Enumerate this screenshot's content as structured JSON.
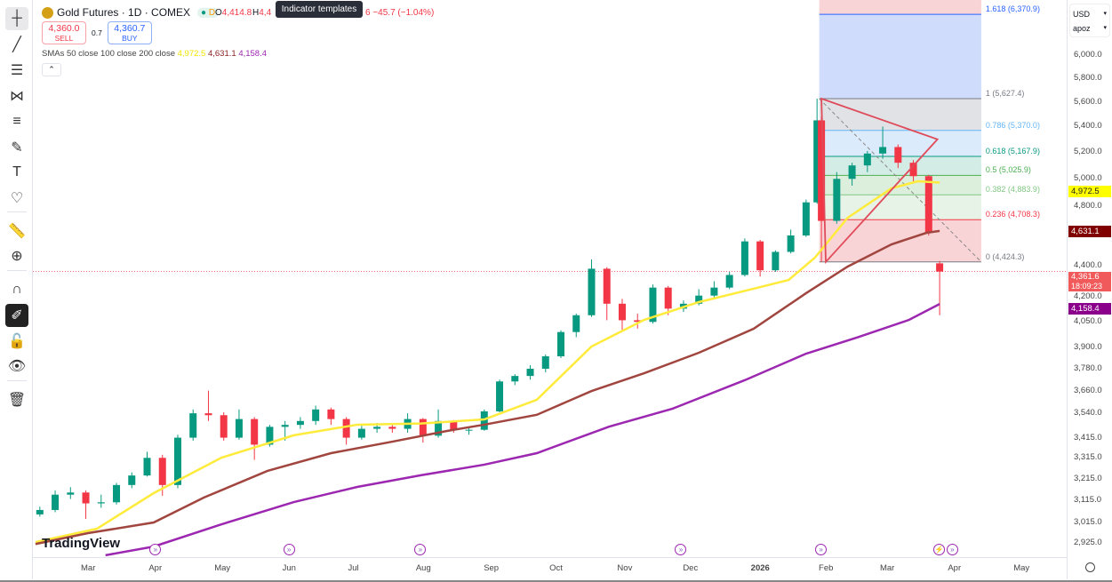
{
  "header": {
    "symbol_title": "Gold Futures · 1D · COMEX",
    "status_dot": "●",
    "delay_badge": "D",
    "open_prefix": "O",
    "open_value": "4,414.8",
    "high_prefix": "H",
    "high_partial": "4,4",
    "hidden_tail": "6",
    "change": "−45.7 (−1.04%)",
    "tooltip": "Indicator templates",
    "sell_price": "4,360.0",
    "sell_label": "SELL",
    "spread": "0.7",
    "buy_price": "4,360.7",
    "buy_label": "BUY",
    "sma_label": "SMAs 50 close 100 close 200 close",
    "sma50_value": "4,972.5",
    "sma100_value": "4,631.1",
    "sma200_value": "4,158.4",
    "collapse_icon": "chevron-up-icon"
  },
  "toolbar": {
    "tools": [
      "crosshair-icon",
      "trend-line-icon",
      "horizontal-lines-icon",
      "pattern-icon",
      "fib-icon",
      "brush-icon",
      "text-icon",
      "heart-icon",
      "ruler-icon",
      "zoom-in-icon",
      "magnet-icon",
      "lock-drawings-icon",
      "unlock-icon",
      "eye-icon",
      "trash-icon"
    ]
  },
  "price_axis": {
    "currency": "USD",
    "scale_mode": "apoz",
    "ticks": [
      "6,000.0",
      "5,800.0",
      "5,600.0",
      "5,400.0",
      "5,200.0",
      "5,000.0",
      "4,800.0",
      "4,400.0",
      "4,200.0",
      "4,050.0",
      "3,900.0",
      "3,780.0",
      "3,660.0",
      "3,540.0",
      "3,415.0",
      "3,315.0",
      "3,215.0",
      "3,115.0",
      "3,015.0",
      "2,925.0"
    ],
    "last_price": "4,361.6",
    "countdown": "18:09:23",
    "sma50_tag": "4,972.5",
    "sma100_tag": "4,631.1",
    "sma200_tag": "4,158.4"
  },
  "time_axis": {
    "ticks": [
      "Mar",
      "Apr",
      "May",
      "Jun",
      "Jul",
      "Aug",
      "Sep",
      "Oct",
      "Nov",
      "Dec",
      "2026",
      "Feb",
      "Mar",
      "Apr",
      "May"
    ],
    "settings_icon": "gear-icon"
  },
  "branding": "TradingView",
  "colors": {
    "up": "#089981",
    "down": "#f23645",
    "sma50": "#ffeb3b",
    "sma100": "#a1453f",
    "sma200": "#9c27b0",
    "last_price": "#f23645"
  },
  "chart_data": {
    "type": "candlestick",
    "scale": "log",
    "ylim": [
      2900,
      6600
    ],
    "tick_dates": [
      "2025-03-01",
      "2025-04-01",
      "2025-05-01",
      "2025-06-01",
      "2025-07-01",
      "2025-08-01",
      "2025-09-01",
      "2025-10-01",
      "2025-11-01",
      "2025-12-01",
      "2026-01-01",
      "2026-02-01",
      "2026-03-01",
      "2026-04-01",
      "2026-05-01"
    ],
    "tick_prices": [
      6000,
      5800,
      5600,
      5400,
      5200,
      5000,
      4800,
      4400,
      4200,
      4050,
      3900,
      3780,
      3660,
      3540,
      3415,
      3315,
      3215,
      3115,
      3015,
      2925
    ],
    "candles": [
      [
        "2025-02-07",
        3050,
        3085,
        3040,
        3070
      ],
      [
        "2025-02-14",
        3070,
        3160,
        3060,
        3140
      ],
      [
        "2025-02-21",
        3140,
        3175,
        3120,
        3150
      ],
      [
        "2025-02-28",
        3150,
        3160,
        3030,
        3100
      ],
      [
        "2025-03-07",
        3100,
        3140,
        3080,
        3105
      ],
      [
        "2025-03-14",
        3105,
        3195,
        3095,
        3185
      ],
      [
        "2025-03-21",
        3185,
        3245,
        3170,
        3230
      ],
      [
        "2025-03-28",
        3230,
        3345,
        3225,
        3315
      ],
      [
        "2025-04-04",
        3315,
        3330,
        3135,
        3185
      ],
      [
        "2025-04-11",
        3185,
        3430,
        3170,
        3415
      ],
      [
        "2025-04-18",
        3415,
        3560,
        3400,
        3540
      ],
      [
        "2025-04-25",
        3540,
        3660,
        3500,
        3530
      ],
      [
        "2025-05-02",
        3530,
        3545,
        3400,
        3415
      ],
      [
        "2025-05-09",
        3415,
        3560,
        3405,
        3510
      ],
      [
        "2025-05-16",
        3510,
        3520,
        3305,
        3380
      ],
      [
        "2025-05-23",
        3380,
        3480,
        3370,
        3470
      ],
      [
        "2025-05-30",
        3470,
        3500,
        3400,
        3480
      ],
      [
        "2025-06-06",
        3480,
        3520,
        3460,
        3500
      ],
      [
        "2025-06-13",
        3500,
        3580,
        3480,
        3560
      ],
      [
        "2025-06-20",
        3560,
        3570,
        3480,
        3510
      ],
      [
        "2025-06-27",
        3510,
        3520,
        3380,
        3415
      ],
      [
        "2025-07-04",
        3415,
        3475,
        3405,
        3460
      ],
      [
        "2025-07-11",
        3460,
        3490,
        3440,
        3470
      ],
      [
        "2025-07-18",
        3470,
        3490,
        3440,
        3460
      ],
      [
        "2025-07-25",
        3460,
        3540,
        3440,
        3510
      ],
      [
        "2025-08-01",
        3510,
        3515,
        3390,
        3425
      ],
      [
        "2025-08-08",
        3425,
        3560,
        3415,
        3500
      ],
      [
        "2025-08-15",
        3500,
        3505,
        3440,
        3455
      ],
      [
        "2025-08-22",
        3455,
        3470,
        3430,
        3455
      ],
      [
        "2025-08-29",
        3455,
        3560,
        3450,
        3550
      ],
      [
        "2025-09-05",
        3550,
        3720,
        3545,
        3710
      ],
      [
        "2025-09-12",
        3710,
        3750,
        3690,
        3740
      ],
      [
        "2025-09-19",
        3740,
        3800,
        3720,
        3780
      ],
      [
        "2025-09-26",
        3780,
        3860,
        3760,
        3850
      ],
      [
        "2025-10-03",
        3850,
        4000,
        3840,
        3990
      ],
      [
        "2025-10-10",
        3990,
        4100,
        3960,
        4090
      ],
      [
        "2025-10-17",
        4090,
        4440,
        4080,
        4380
      ],
      [
        "2025-10-24",
        4380,
        4390,
        4060,
        4160
      ],
      [
        "2025-10-31",
        4160,
        4190,
        4000,
        4060
      ],
      [
        "2025-11-07",
        4060,
        4100,
        4010,
        4050
      ],
      [
        "2025-11-14",
        4050,
        4280,
        4040,
        4260
      ],
      [
        "2025-11-21",
        4260,
        4270,
        4090,
        4130
      ],
      [
        "2025-11-28",
        4130,
        4180,
        4110,
        4160
      ],
      [
        "2025-12-05",
        4160,
        4250,
        4150,
        4210
      ],
      [
        "2025-12-12",
        4210,
        4300,
        4200,
        4260
      ],
      [
        "2025-12-19",
        4260,
        4360,
        4250,
        4340
      ],
      [
        "2025-12-26",
        4340,
        4580,
        4330,
        4560
      ],
      [
        "2026-01-02",
        4560,
        4570,
        4330,
        4370
      ],
      [
        "2026-01-09",
        4370,
        4500,
        4360,
        4490
      ],
      [
        "2026-01-16",
        4490,
        4640,
        4480,
        4600
      ],
      [
        "2026-01-23",
        4600,
        4850,
        4590,
        4830
      ],
      [
        "2026-01-28",
        4830,
        5627,
        4820,
        5450
      ],
      [
        "2026-01-30",
        5450,
        5480,
        4424,
        4700
      ],
      [
        "2026-02-06",
        4700,
        5050,
        4680,
        5000
      ],
      [
        "2026-02-13",
        5000,
        5120,
        4950,
        5100
      ],
      [
        "2026-02-20",
        5100,
        5210,
        5050,
        5190
      ],
      [
        "2026-02-27",
        5190,
        5400,
        5150,
        5240
      ],
      [
        "2026-03-06",
        5240,
        5260,
        5080,
        5120
      ],
      [
        "2026-03-13",
        5120,
        5140,
        4980,
        5020
      ],
      [
        "2026-03-20",
        5020,
        5030,
        4600,
        4620
      ],
      [
        "2026-03-25",
        4414.8,
        4430,
        4090,
        4361.6
      ]
    ],
    "series": [
      {
        "name": "SMA 50",
        "points": [
          [
            "2025-02-05",
            2928
          ],
          [
            "2025-03-05",
            2986
          ],
          [
            "2025-03-31",
            3147
          ],
          [
            "2025-05-01",
            3316
          ],
          [
            "2025-06-03",
            3427
          ],
          [
            "2025-07-02",
            3481
          ],
          [
            "2025-07-31",
            3487
          ],
          [
            "2025-08-29",
            3508
          ],
          [
            "2025-09-22",
            3611
          ],
          [
            "2025-10-17",
            3906
          ],
          [
            "2025-11-10",
            4062
          ],
          [
            "2025-12-05",
            4170
          ],
          [
            "2025-12-30",
            4253
          ],
          [
            "2026-01-15",
            4308
          ],
          [
            "2026-01-27",
            4452
          ],
          [
            "2026-02-11",
            4722
          ],
          [
            "2026-03-03",
            4931
          ],
          [
            "2026-03-15",
            4982
          ],
          [
            "2026-03-25",
            4972.5
          ]
        ]
      },
      {
        "name": "SMA 100",
        "points": [
          [
            "2025-02-05",
            2920
          ],
          [
            "2025-03-01",
            2967
          ],
          [
            "2025-03-31",
            3014
          ],
          [
            "2025-04-23",
            3127
          ],
          [
            "2025-05-22",
            3252
          ],
          [
            "2025-06-20",
            3338
          ],
          [
            "2025-07-18",
            3395
          ],
          [
            "2025-08-12",
            3449
          ],
          [
            "2025-08-29",
            3481
          ],
          [
            "2025-09-22",
            3532
          ],
          [
            "2025-10-17",
            3658
          ],
          [
            "2025-11-10",
            3755
          ],
          [
            "2025-12-05",
            3870
          ],
          [
            "2025-12-30",
            4009
          ],
          [
            "2026-01-23",
            4225
          ],
          [
            "2026-02-11",
            4394
          ],
          [
            "2026-03-03",
            4540
          ],
          [
            "2026-03-19",
            4618
          ],
          [
            "2026-03-25",
            4631.1
          ]
        ]
      },
      {
        "name": "SMA 200",
        "points": [
          [
            "2025-03-09",
            2872
          ],
          [
            "2025-03-31",
            2909
          ],
          [
            "2025-05-01",
            3006
          ],
          [
            "2025-06-03",
            3106
          ],
          [
            "2025-07-02",
            3176
          ],
          [
            "2025-07-31",
            3231
          ],
          [
            "2025-08-29",
            3282
          ],
          [
            "2025-09-22",
            3338
          ],
          [
            "2025-10-25",
            3471
          ],
          [
            "2025-11-23",
            3564
          ],
          [
            "2025-12-26",
            3717
          ],
          [
            "2026-01-23",
            3865
          ],
          [
            "2026-02-15",
            3957
          ],
          [
            "2026-03-11",
            4062
          ],
          [
            "2026-03-25",
            4158.4
          ]
        ]
      }
    ],
    "fib_retracement": {
      "start_date": "2026-01-29",
      "end_date": "2026-04-13",
      "levels": [
        {
          "ratio": "1.618",
          "price": 6370.9,
          "label": "1.618 (6,370.9)",
          "color": "#2962ff",
          "fill": "#cfdcfb"
        },
        {
          "ratio": "1",
          "price": 5627.4,
          "label": "1 (5,627.4)",
          "color": "#787b86",
          "fill": "#e1e2e6"
        },
        {
          "ratio": "0.786",
          "price": 5370.0,
          "label": "0.786 (5,370.0)",
          "color": "#64b5f6",
          "fill": "#dcebfb"
        },
        {
          "ratio": "0.618",
          "price": 5167.9,
          "label": "0.618 (5,167.9)",
          "color": "#089981",
          "fill": "#d4ece6"
        },
        {
          "ratio": "0.5",
          "price": 5025.9,
          "label": "0.5 (5,025.9)",
          "color": "#4caf50",
          "fill": "#dcefdc"
        },
        {
          "ratio": "0.382",
          "price": 4883.9,
          "label": "0.382 (4,883.9)",
          "color": "#81c784",
          "fill": "#e6f3e6"
        },
        {
          "ratio": "0.236",
          "price": 4708.3,
          "label": "0.236 (4,708.3)",
          "color": "#f23645",
          "fill": "#f9d4d7"
        },
        {
          "ratio": "0",
          "price": 4424.3,
          "label": "0 (4,424.3)",
          "color": "#787b86",
          "fill": "#f9d4d7"
        }
      ],
      "above_fill": "#f9d4d7"
    },
    "triangle": [
      [
        "2026-01-30",
        5627
      ],
      [
        "2026-03-24",
        5300
      ],
      [
        "2026-02-01",
        4424
      ]
    ],
    "events": [
      "2025-04-01",
      "2025-06-01",
      "2025-07-31",
      "2025-11-27",
      "2026-01-30",
      "2026-03-25",
      "2026-03-31"
    ]
  }
}
